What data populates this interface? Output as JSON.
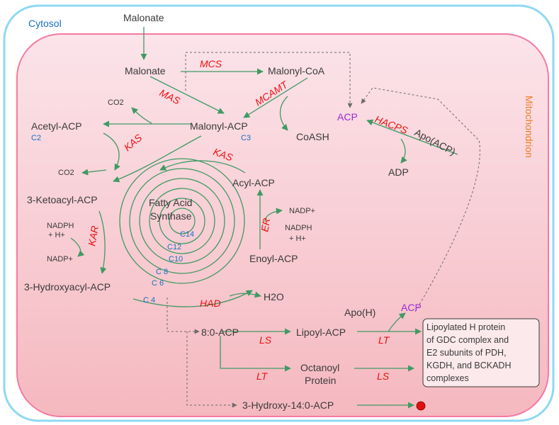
{
  "compartments": {
    "outer": "Cytosol",
    "inner": "Mitochondrion"
  },
  "metabolites": {
    "malonate_cyto": "Malonate",
    "malonate_mito": "Malonate",
    "malonyl_coa": "Malonyl-CoA",
    "malonyl_acp": "Malonyl-ACP",
    "malonyl_acp_chain": "C3",
    "acetyl_acp": "Acetyl-ACP",
    "acetyl_acp_chain": "C2",
    "co2_a": "CO2",
    "co2_b": "CO2",
    "acp_top": "ACP",
    "coash": "CoASH",
    "apo_acp": "Apo(ACP)",
    "adp": "ADP",
    "ketoacyl_acp": "3-Ketoacyl-ACP",
    "nadph_left": "NADPH",
    "h_left": "+ H+",
    "nadp_left": "NADP+",
    "hydroxyacyl_acp": "3-Hydroxyacyl-ACP",
    "acyl_acp": "Acyl-ACP",
    "nadp_right": "NADP+",
    "nadph_right": "NADPH",
    "h_right": "+ H+",
    "enoyl_acp": "Enoyl-ACP",
    "h2o": "H2O",
    "octanoyl_acp": "8:0-ACP",
    "lipoyl_acp": "Lipoyl-ACP",
    "apo_h": "Apo(H)",
    "acp_bottom": "ACP",
    "octanoyl_protein_1": "Octanoyl",
    "octanoyl_protein_2": "Protein",
    "hydroxy_14": "3-Hydroxy-14:0-ACP"
  },
  "center_label": {
    "line1": "Fatty Acid",
    "line2": "Synthase"
  },
  "chain_lengths": [
    "C 4",
    "C 6",
    "C 8",
    "C10",
    "C12",
    "C14"
  ],
  "enzymes": {
    "mcs": "MCS",
    "mas": "MAS",
    "mcamt": "MCAMT",
    "hacps": "HACPS",
    "kas_left": "KAS",
    "kas_right": "KAS",
    "kar": "KAR",
    "er": "ER",
    "had": "HAD",
    "ls_top": "LS",
    "lt_top": "LT",
    "lt_bottom": "LT",
    "ls_bottom": "LS"
  },
  "box_text": [
    "Lipoylated H protein",
    "of GDC complex and",
    "E2 subunits of PDH,",
    "KGDH, and BCKADH",
    "complexes"
  ],
  "colors": {
    "enzyme": "#ee1111",
    "arrow": "#3f9a63",
    "chain_label": "#1a6fc4",
    "acp": "#9a2bd6",
    "cytosol_label": "#1a6fc4",
    "mito_label": "#ef7d22",
    "cell_border": "#8fd8f2",
    "mito_border": "#f47aa4",
    "terminal_dot": "#e01010"
  }
}
